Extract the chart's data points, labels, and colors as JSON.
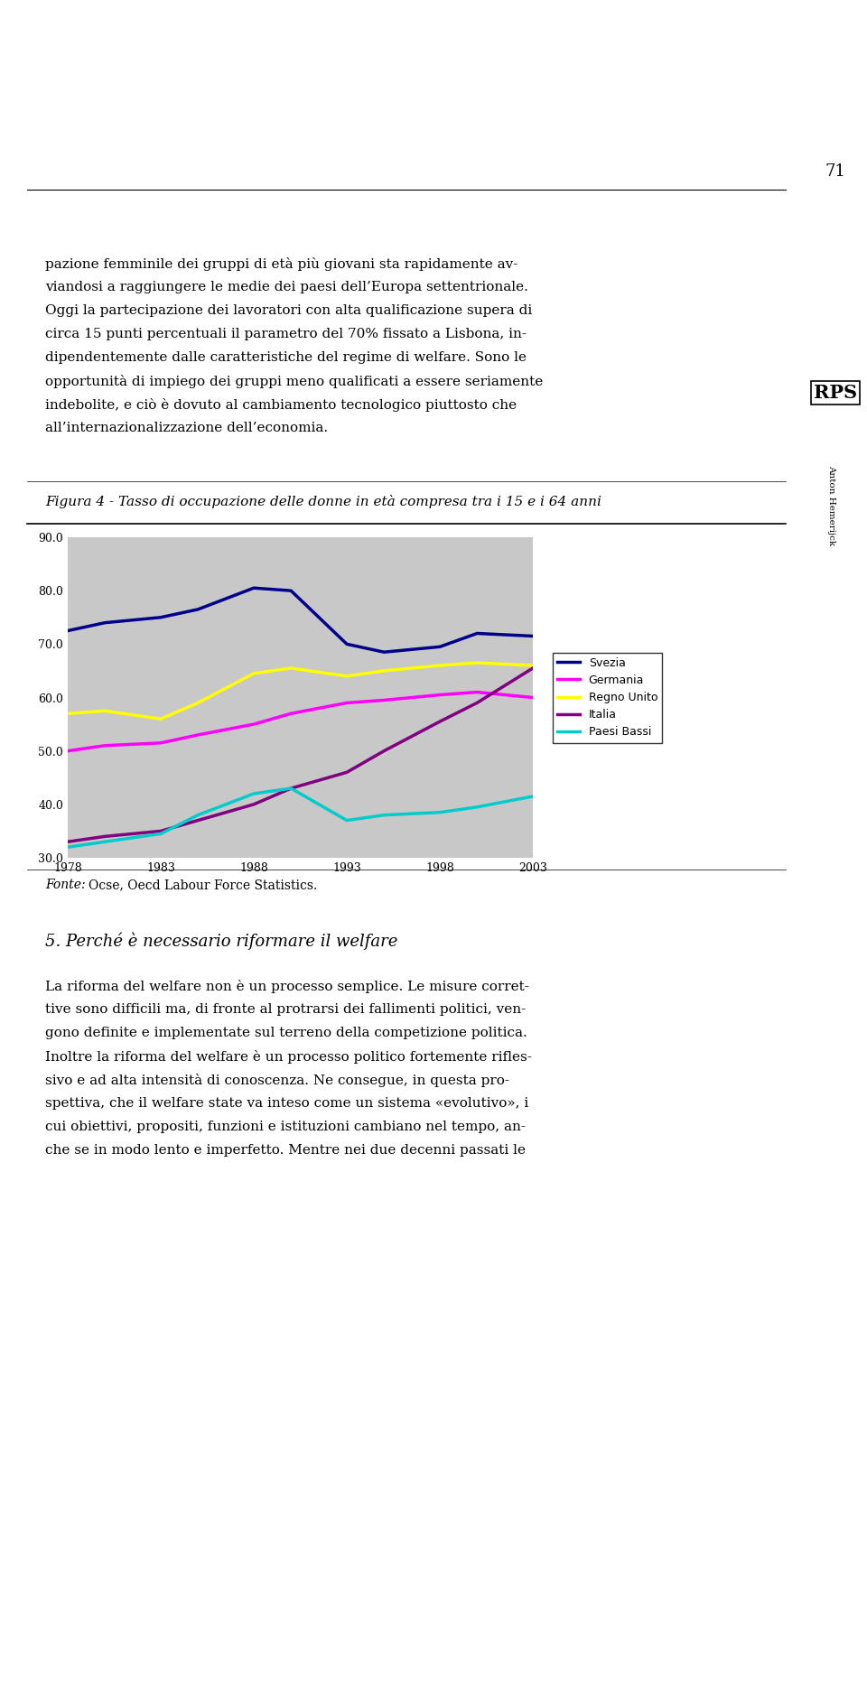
{
  "page_bg": "#ffffff",
  "page_number": "71",
  "sidebar_color": "#b8b8b8",
  "sidebar_text": "Anton Hemerijck",
  "sidebar_logo": "RPS",
  "paragraph_top": "pazione femminile dei gruppi di età più giovani sta rapidamente av-\nviandosi a raggiungere le medie dei paesi dell’Europa settentrionale.\nOggi la partecipazione dei lavoratori con alta qualificazione supera di\ncirca 15 punti percentuali il parametro del 70% fissato a Lisbona, in-\ndipendentemente dalle caratteristiche del regime di welfare. Sono le\nopportunità di impiego dei gruppi meno qualificati a essere seriamente\nindebolite, e ciò è dovuto al cambiamento tecnologico piuttosto che\nall’internazionalizzazione dell’economia.",
  "figure_caption": "Figura 4 - Tasso di occupazione delle donne in età compresa tra i 15 e i 64 anni",
  "chart_bg": "#c8c8c8",
  "ylim_min": 30.0,
  "ylim_max": 90.0,
  "yticks": [
    30.0,
    40.0,
    50.0,
    60.0,
    70.0,
    80.0,
    90.0
  ],
  "xticks": [
    1978,
    1983,
    1988,
    1993,
    1998,
    2003
  ],
  "series": {
    "Svezia": {
      "color": "#00008B",
      "x": [
        1978,
        1980,
        1983,
        1985,
        1988,
        1990,
        1993,
        1995,
        1998,
        2000,
        2003
      ],
      "y": [
        72.5,
        74.0,
        75.0,
        76.5,
        80.5,
        80.0,
        70.0,
        68.5,
        69.5,
        72.0,
        71.5
      ]
    },
    "Germania": {
      "color": "#FF00FF",
      "x": [
        1978,
        1980,
        1983,
        1985,
        1988,
        1990,
        1993,
        1995,
        1998,
        2000,
        2003
      ],
      "y": [
        50.0,
        51.0,
        51.5,
        53.0,
        55.0,
        57.0,
        59.0,
        59.5,
        60.5,
        61.0,
        60.0
      ]
    },
    "Regno Unito": {
      "color": "#FFFF00",
      "x": [
        1978,
        1980,
        1983,
        1985,
        1988,
        1990,
        1993,
        1995,
        1998,
        2000,
        2003
      ],
      "y": [
        57.0,
        57.5,
        56.0,
        59.0,
        64.5,
        65.5,
        64.0,
        65.0,
        66.0,
        66.5,
        66.0
      ]
    },
    "Italia": {
      "color": "#800080",
      "x": [
        1978,
        1980,
        1983,
        1985,
        1988,
        1990,
        1993,
        1995,
        1998,
        2000,
        2003
      ],
      "y": [
        33.0,
        34.0,
        35.0,
        37.0,
        40.0,
        43.0,
        46.0,
        50.0,
        55.5,
        59.0,
        65.5
      ]
    },
    "Paesi Bassi": {
      "color": "#00CCCC",
      "x": [
        1978,
        1980,
        1983,
        1985,
        1988,
        1990,
        1993,
        1995,
        1998,
        2000,
        2003
      ],
      "y": [
        32.0,
        33.0,
        34.5,
        38.0,
        42.0,
        43.0,
        37.0,
        38.0,
        38.5,
        39.5,
        41.5
      ]
    }
  },
  "fonte_text": "Fonte: Ocse, Oecd Labour Force Statistics.",
  "section_title": "5. Perché è necessario riformare il welfare",
  "bottom_paragraph": "La riforma del welfare non è un processo semplice. Le misure corret-\ntive sono difficili ma, di fronte al protrarsi dei fallimenti politici, ven-\ngono definite e implementate sul terreno della competizione politica.\nInoltre la riforma del welfare è un processo politico fortemente rifles-\nsivo e ad alta intensità di conoscenza. Ne consegue, in questa pro-\nspettiva, che il welfare state va inteso come un sistema «evolutivo», i\ncui obiettivi, propositi, funzioni e istituzioni cambiano nel tempo, an-\nche se in modo lento e imperfetto. Mentre nei due decenni passati le"
}
